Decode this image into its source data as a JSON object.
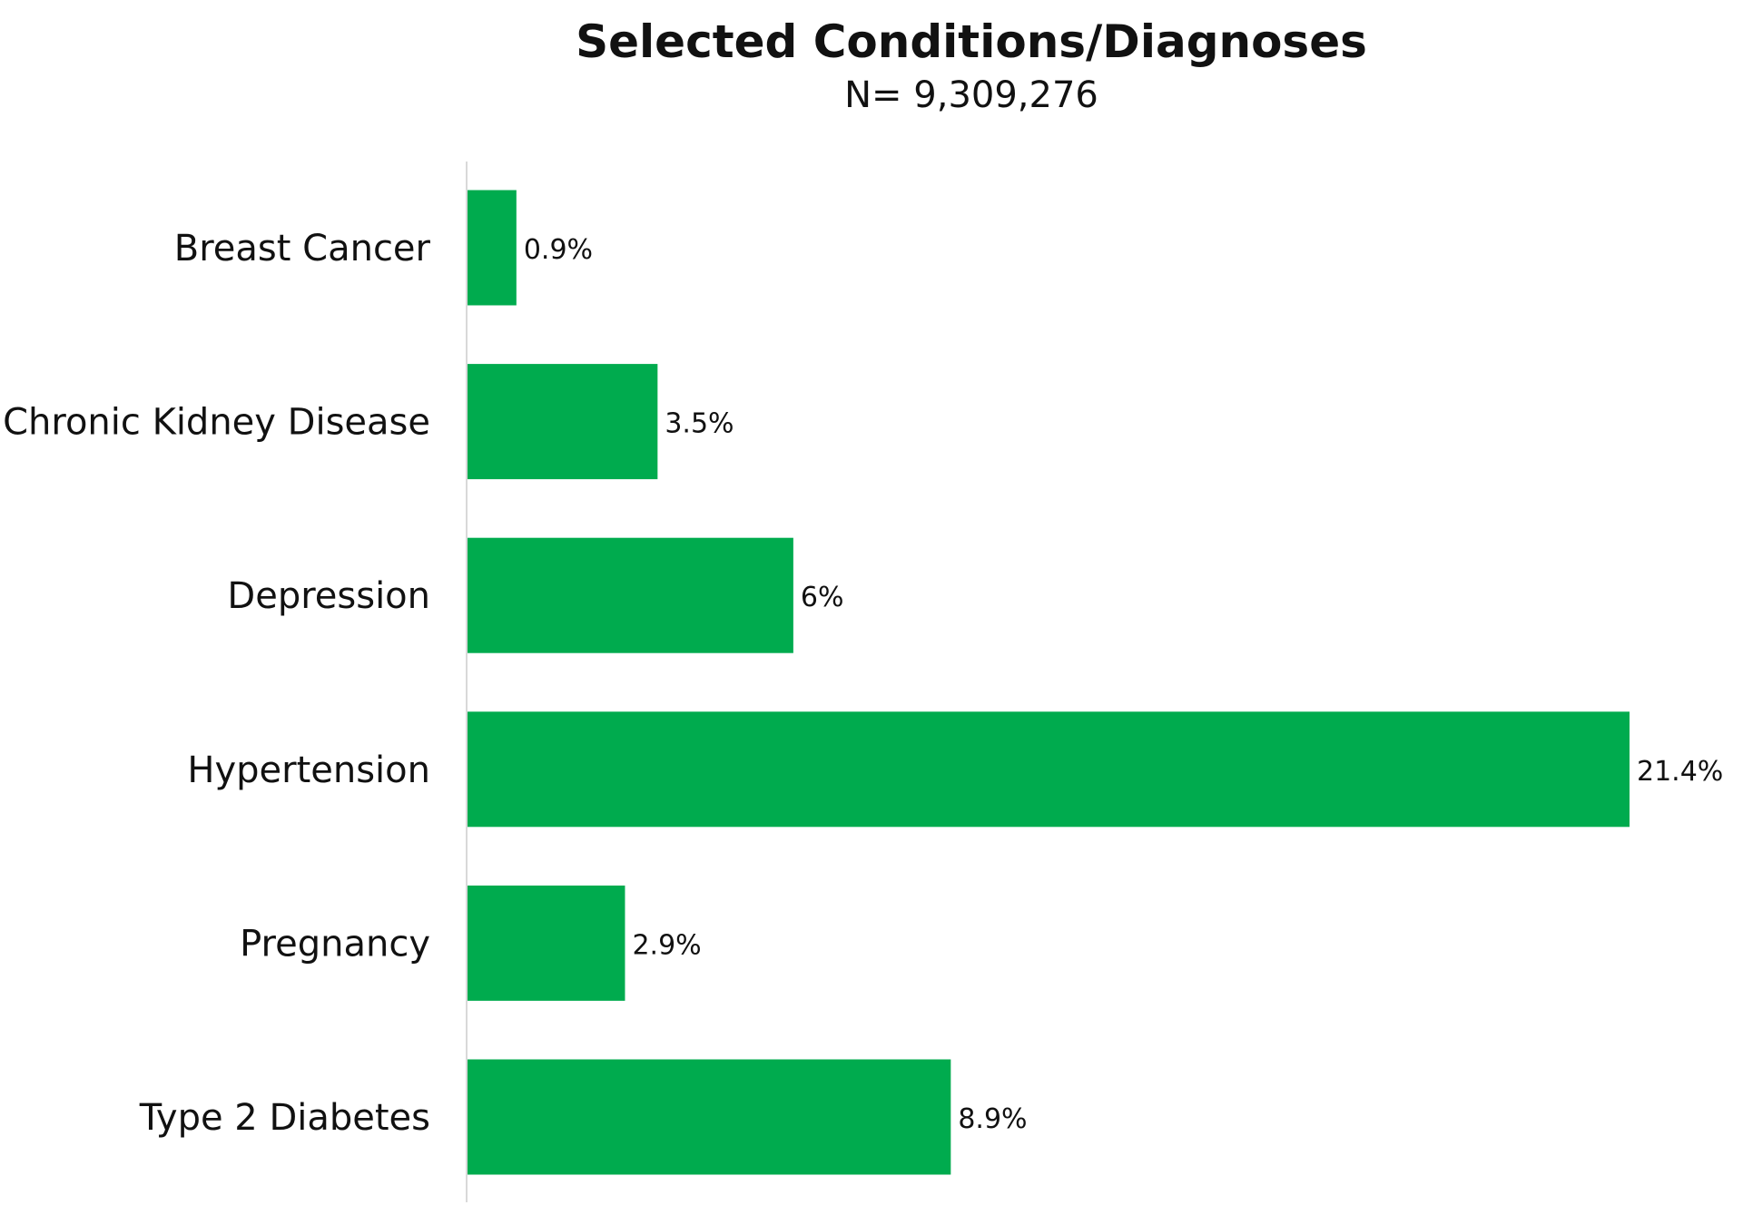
{
  "chart_data": {
    "type": "bar",
    "orientation": "horizontal",
    "title": "Selected Conditions/Diagnoses",
    "subtitle": "N= 9,309,276",
    "categories": [
      "Breast Cancer",
      "Chronic Kidney Disease",
      "Depression",
      "Hypertension",
      "Pregnancy",
      "Type 2 Diabetes"
    ],
    "values": [
      0.9,
      3.5,
      6,
      21.4,
      2.9,
      8.9
    ],
    "value_labels": [
      "0.9%",
      "3.5%",
      "6%",
      "21.4%",
      "2.9%",
      "8.9%"
    ],
    "xlabel": "",
    "ylabel": "",
    "xlim": [
      0,
      21.4
    ],
    "grid": false,
    "legend": "none",
    "bar_color": "#00AB4E",
    "axis_color": "#D9D9D9"
  }
}
